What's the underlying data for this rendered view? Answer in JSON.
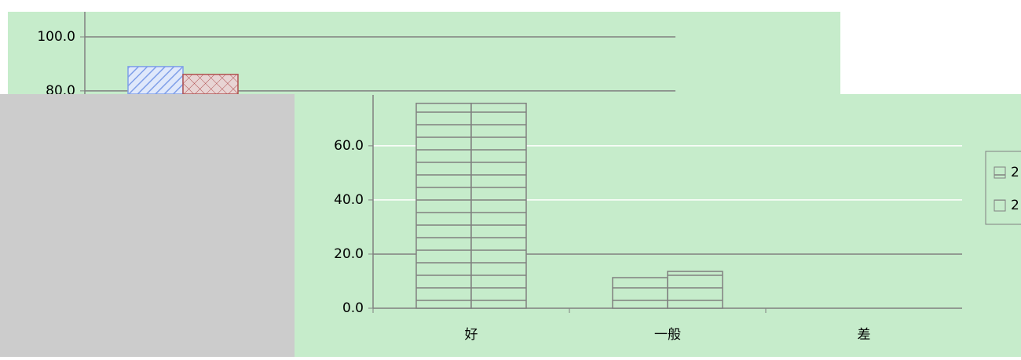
{
  "chart_data": [
    {
      "type": "bar",
      "categories": [
        null
      ],
      "series": [
        {
          "name": null,
          "color": "#7f9fe8",
          "pattern": "diag",
          "values": [
            89.0
          ]
        },
        {
          "name": null,
          "color": "#b05050",
          "pattern": "cross",
          "values": [
            86.1
          ]
        }
      ],
      "ylim": [
        78.8,
        109.3
      ],
      "yticks": [
        {
          "value": 80,
          "label": "80.0"
        },
        {
          "value": 100,
          "label": "100.0"
        }
      ],
      "grid": true
    },
    {
      "type": "bar",
      "categories": [
        "好",
        "一般",
        "差"
      ],
      "series": [
        {
          "name": "2",
          "color": "#808080",
          "pattern": "hlines",
          "values": [
            75.7,
            11.3,
            0
          ]
        },
        {
          "name": "2",
          "color": "#808080",
          "pattern": "hlines",
          "values": [
            75.7,
            13.6,
            0
          ]
        }
      ],
      "ylim": [
        0,
        78.8
      ],
      "yticks": [
        {
          "value": 0,
          "label": "0.0"
        },
        {
          "value": 20,
          "label": "20.0"
        },
        {
          "value": 40,
          "label": "40.0"
        },
        {
          "value": 60,
          "label": "60.0"
        }
      ],
      "grid": true,
      "legend": "right"
    }
  ]
}
